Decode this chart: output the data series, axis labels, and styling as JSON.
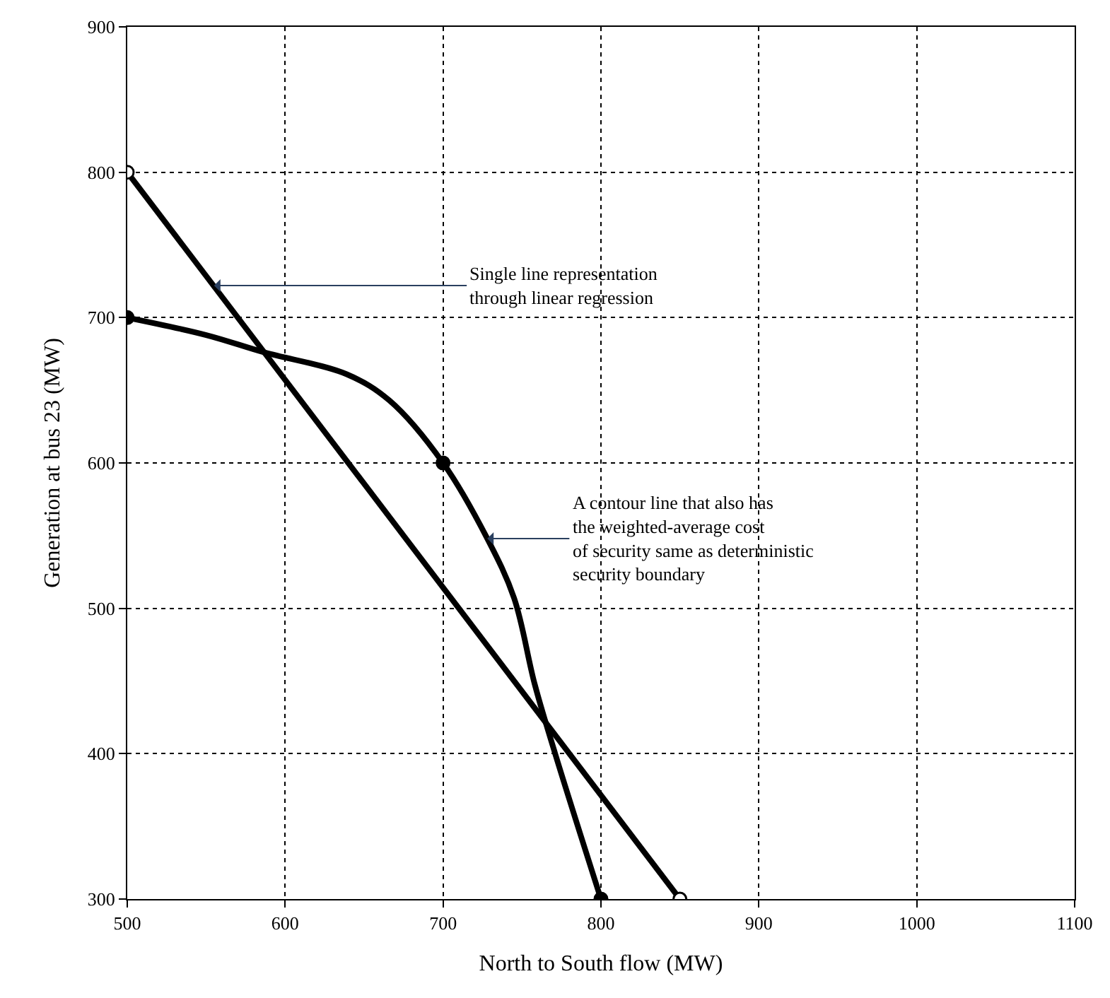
{
  "chart_data": {
    "type": "line",
    "xlabel": "North to South flow (MW)",
    "ylabel": "Generation at bus 23 (MW)",
    "series": [
      {
        "color": "#000000",
        "marker": "none",
        "x": [
          500,
          850
        ],
        "values": [
          800,
          300
        ]
      },
      {
        "color": "#000000",
        "marker": "none",
        "x": [
          500,
          550,
          587,
          639,
          666,
          700,
          728,
          745,
          758,
          771,
          800
        ],
        "values": [
          700,
          688,
          676,
          661,
          643,
          600,
          548,
          507,
          448,
          400,
          300
        ]
      },
      {
        "type": "scatter",
        "color": "#000000",
        "marker": "circle",
        "x": [
          500,
          700,
          800
        ],
        "values": [
          700,
          600,
          300
        ]
      },
      {
        "type": "scatter",
        "color": "#ffffff",
        "marker": "circle",
        "x": [
          500,
          850
        ],
        "values": [
          800,
          300
        ]
      }
    ],
    "xlim": [
      500,
      1100
    ],
    "xticks": [
      500,
      600,
      700,
      800,
      900,
      1000,
      1100
    ],
    "ylim": [
      300,
      900
    ],
    "yticks": [
      300,
      400,
      500,
      600,
      700,
      800,
      900
    ],
    "grid": true,
    "annotations": [
      {
        "text": "Single line representation\nthrough linear regression",
        "x": 555,
        "y": 722
      },
      {
        "text": "A contour line that also has\nthe weighted-average cost\nof security same as deterministic\nsecurity boundary",
        "x": 728,
        "y": 548
      }
    ]
  }
}
